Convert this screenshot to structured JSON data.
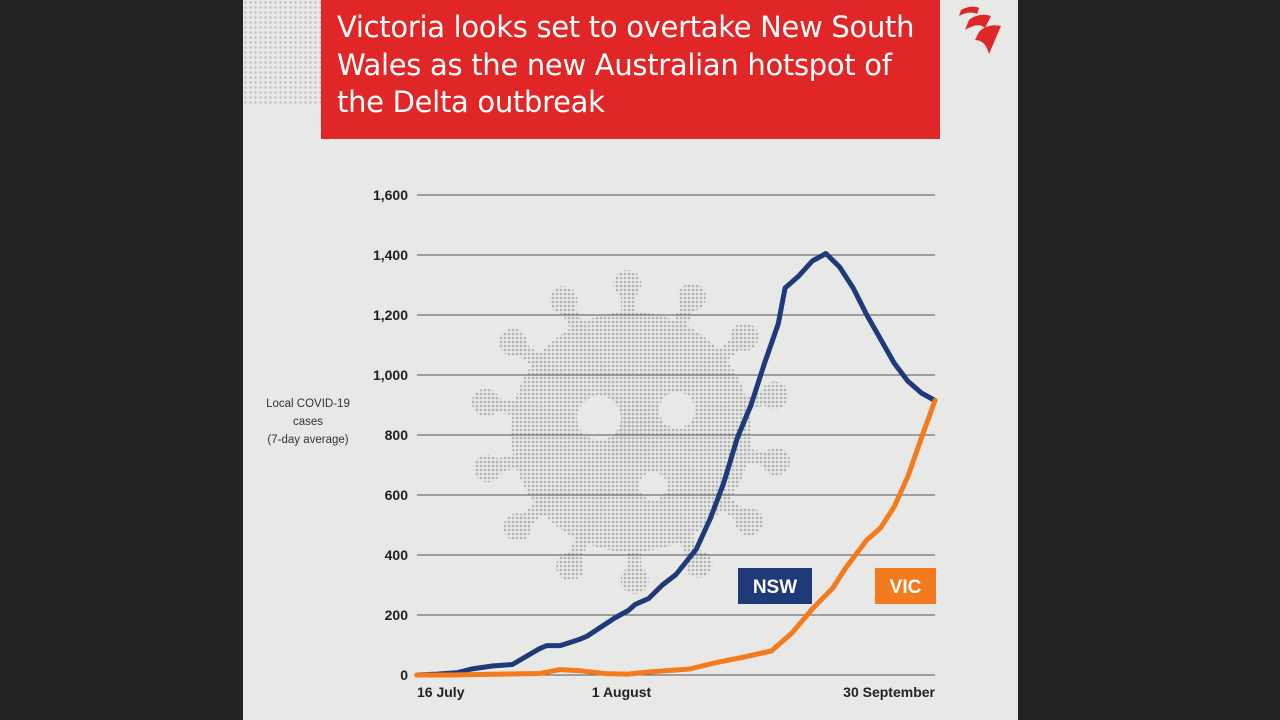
{
  "title": "Victoria looks set to overtake New South Wales as the new Australian hotspot of the Delta outbreak",
  "colors": {
    "background": "#e8e8e6",
    "title_bg": "#e02626",
    "nsw": "#1f3a78",
    "vic": "#f47b1d",
    "gridline": "#555555",
    "brand": "#e02626"
  },
  "icons": {
    "brand_logo": "sbs-logo-icon",
    "virus": "virus-icon"
  },
  "chart_data": {
    "type": "line",
    "title": "Victoria looks set to overtake New South Wales as the new Australian hotspot of the Delta outbreak",
    "ylabel": "Local COVID-19 cases (7-day average)",
    "ylabel_lines": [
      "Local COVID-19",
      "cases",
      "(7-day average)"
    ],
    "xlabel": "",
    "x_tick_labels": [
      "16 July",
      "1 August",
      "30 September"
    ],
    "y_ticks": [
      0,
      200,
      400,
      600,
      800,
      1000,
      1200,
      1400,
      1600
    ],
    "y_tick_labels": [
      "0",
      "200",
      "400",
      "600",
      "800",
      "1,000",
      "1,200",
      "1,400",
      "1,600"
    ],
    "ylim": [
      0,
      1600
    ],
    "x_index_range": [
      0,
      76
    ],
    "x_tick_positions": [
      0,
      30,
      76
    ],
    "grid": true,
    "legend": "inline labels near line ends",
    "series": [
      {
        "name": "NSW",
        "color": "#1f3a78",
        "points": [
          [
            0,
            0
          ],
          [
            3,
            3
          ],
          [
            6,
            8
          ],
          [
            8,
            20
          ],
          [
            11,
            30
          ],
          [
            14,
            35
          ],
          [
            17,
            75
          ],
          [
            18,
            88
          ],
          [
            19,
            98
          ],
          [
            21,
            98
          ],
          [
            22,
            105
          ],
          [
            24,
            120
          ],
          [
            25,
            130
          ],
          [
            27,
            160
          ],
          [
            29,
            190
          ],
          [
            31,
            215
          ],
          [
            32,
            235
          ],
          [
            34,
            255
          ],
          [
            36,
            300
          ],
          [
            38,
            335
          ],
          [
            41,
            420
          ],
          [
            43,
            520
          ],
          [
            45,
            640
          ],
          [
            47,
            790
          ],
          [
            49,
            900
          ],
          [
            51,
            1040
          ],
          [
            53,
            1170
          ],
          [
            54,
            1290
          ],
          [
            56,
            1330
          ],
          [
            58,
            1380
          ],
          [
            60,
            1405
          ],
          [
            62,
            1360
          ],
          [
            64,
            1290
          ],
          [
            66,
            1200
          ],
          [
            68,
            1120
          ],
          [
            70,
            1040
          ],
          [
            72,
            980
          ],
          [
            74,
            940
          ],
          [
            76,
            915
          ]
        ]
      },
      {
        "name": "VIC",
        "color": "#f47b1d",
        "points": [
          [
            0,
            0
          ],
          [
            5,
            0
          ],
          [
            10,
            2
          ],
          [
            18,
            5
          ],
          [
            21,
            18
          ],
          [
            24,
            14
          ],
          [
            28,
            4
          ],
          [
            31,
            3
          ],
          [
            34,
            10
          ],
          [
            37,
            15
          ],
          [
            40,
            20
          ],
          [
            44,
            42
          ],
          [
            48,
            60
          ],
          [
            52,
            80
          ],
          [
            55,
            140
          ],
          [
            58,
            220
          ],
          [
            61,
            290
          ],
          [
            63,
            360
          ],
          [
            66,
            450
          ],
          [
            68,
            490
          ],
          [
            70,
            560
          ],
          [
            72,
            660
          ],
          [
            74,
            790
          ],
          [
            76,
            915
          ]
        ]
      }
    ]
  }
}
